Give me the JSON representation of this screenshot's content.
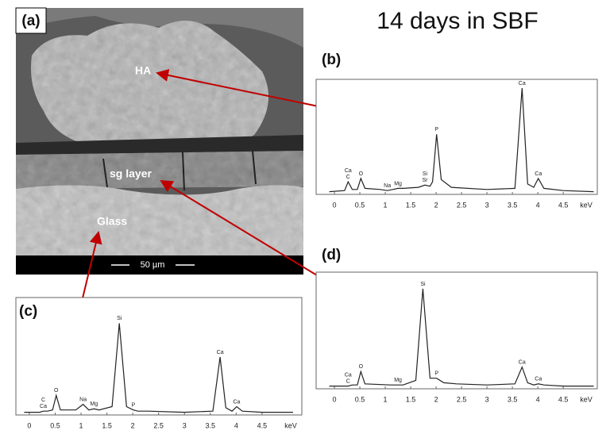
{
  "title": "14 days in SBF",
  "micrograph": {
    "panel": "(a)",
    "labels": [
      "HA",
      "sg layer",
      "Glass"
    ],
    "scale_bar": "50 µm"
  },
  "chart_data": [
    {
      "type": "line",
      "panel": "(b)",
      "x_label": "keV",
      "color": "#222222",
      "xlim": [
        -0.36,
        5.17
      ],
      "ylim": [
        0,
        100
      ],
      "xticks": [
        0,
        0.5,
        1,
        1.5,
        2,
        2.5,
        3,
        3.5,
        4,
        4.5
      ],
      "x": [
        -0.1,
        0.2,
        0.27,
        0.35,
        0.45,
        0.52,
        0.6,
        0.9,
        1.04,
        1.15,
        1.25,
        1.35,
        1.65,
        1.78,
        1.88,
        1.93,
        2.01,
        2.1,
        2.3,
        3.0,
        3.55,
        3.69,
        3.8,
        3.92,
        4.01,
        4.12,
        4.5,
        5.1
      ],
      "values": [
        1,
        2,
        10,
        3,
        3,
        13,
        4,
        3,
        2,
        3,
        4,
        4,
        5,
        7,
        6,
        10,
        53,
        12,
        5,
        3,
        4,
        95,
        8,
        5,
        13,
        4,
        2,
        1
      ],
      "annotations": [
        {
          "text": [
            "Ca",
            "C"
          ],
          "x": 0.27
        },
        {
          "text": [
            "O"
          ],
          "x": 0.52
        },
        {
          "text": [
            "Na"
          ],
          "x": 1.04
        },
        {
          "text": [
            "Mg"
          ],
          "x": 1.25
        },
        {
          "text": [
            "Si",
            "Sr"
          ],
          "x": 1.78
        },
        {
          "text": [
            "P"
          ],
          "x": 2.01
        },
        {
          "text": [
            "Ca"
          ],
          "x": 3.69
        },
        {
          "text": [
            "Ca"
          ],
          "x": 4.01
        }
      ]
    },
    {
      "type": "line",
      "panel": "(c)",
      "x_label": "keV",
      "color": "#222222",
      "xlim": [
        -0.26,
        5.27
      ],
      "ylim": [
        0,
        100
      ],
      "xticks": [
        0,
        0.5,
        1,
        1.5,
        2,
        2.5,
        3,
        3.5,
        4,
        4.5
      ],
      "x": [
        -0.1,
        0.2,
        0.27,
        0.35,
        0.45,
        0.52,
        0.6,
        0.9,
        1.04,
        1.15,
        1.25,
        1.35,
        1.6,
        1.74,
        1.88,
        2.01,
        2.1,
        2.3,
        3.0,
        3.55,
        3.69,
        3.8,
        3.92,
        4.01,
        4.12,
        4.5,
        5.1
      ],
      "values": [
        1,
        1,
        2,
        2,
        3,
        16,
        3,
        3,
        8,
        3,
        4,
        3,
        6,
        80,
        6,
        3,
        2,
        2,
        1,
        2,
        50,
        5,
        2,
        6,
        2,
        1,
        1
      ],
      "annotations": [
        {
          "text": [
            "C",
            "Ca"
          ],
          "x": 0.27
        },
        {
          "text": [
            "O"
          ],
          "x": 0.52
        },
        {
          "text": [
            "Na"
          ],
          "x": 1.04
        },
        {
          "text": [
            "Mg"
          ],
          "x": 1.25
        },
        {
          "text": [
            "Si"
          ],
          "x": 1.74
        },
        {
          "text": [
            "P"
          ],
          "x": 2.01
        },
        {
          "text": [
            "Ca"
          ],
          "x": 3.69
        },
        {
          "text": [
            "Ca"
          ],
          "x": 4.01
        }
      ]
    },
    {
      "type": "line",
      "panel": "(d)",
      "x_label": "keV",
      "color": "#222222",
      "xlim": [
        -0.36,
        5.17
      ],
      "ylim": [
        0,
        100
      ],
      "xticks": [
        0,
        0.5,
        1,
        1.5,
        2,
        2.5,
        3,
        3.5,
        4,
        4.5
      ],
      "x": [
        -0.1,
        0.2,
        0.27,
        0.35,
        0.45,
        0.52,
        0.6,
        1.1,
        1.25,
        1.35,
        1.6,
        1.74,
        1.88,
        2.01,
        2.15,
        2.4,
        3.0,
        3.55,
        3.69,
        3.8,
        3.92,
        4.01,
        4.12,
        4.5,
        5.1
      ],
      "values": [
        1,
        1,
        1,
        2,
        2,
        14,
        3,
        2,
        2,
        2,
        6,
        88,
        8,
        8,
        4,
        3,
        2,
        3,
        18,
        4,
        2,
        3,
        2,
        1,
        1
      ],
      "annotations": [
        {
          "text": [
            "Ca",
            "C"
          ],
          "x": 0.27
        },
        {
          "text": [
            "O"
          ],
          "x": 0.52
        },
        {
          "text": [
            "Mg"
          ],
          "x": 1.25
        },
        {
          "text": [
            "Si"
          ],
          "x": 1.74
        },
        {
          "text": [
            "P"
          ],
          "x": 2.01
        },
        {
          "text": [
            "Ca"
          ],
          "x": 3.69
        },
        {
          "text": [
            "Ca"
          ],
          "x": 4.01
        }
      ]
    }
  ]
}
